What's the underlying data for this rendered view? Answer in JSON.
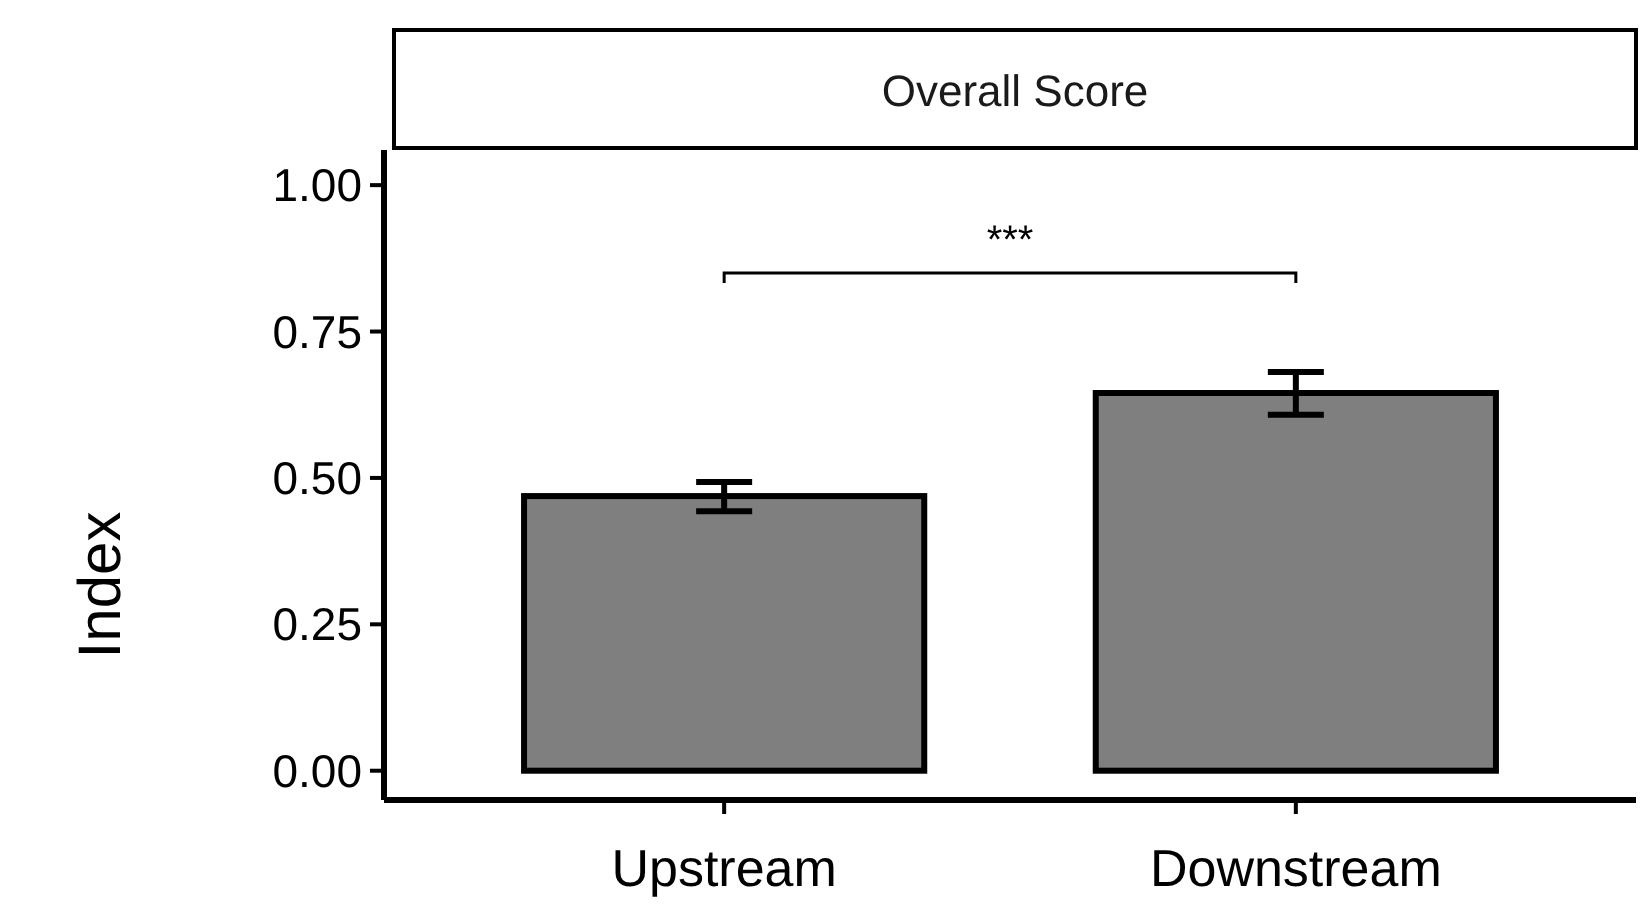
{
  "chart_data": {
    "type": "bar",
    "title": "Overall Score",
    "ylabel": "Index",
    "categories": [
      "Upstream",
      "Downstream"
    ],
    "values": [
      0.469,
      0.645
    ],
    "errors": [
      [
        0.443,
        0.493
      ],
      [
        0.608,
        0.681
      ]
    ],
    "color": "#7f7f7f",
    "ylim": [
      -0.05,
      1.06
    ],
    "yticks": [
      {
        "value": 0,
        "label": "0.00"
      },
      {
        "value": 0.25,
        "label": "0.25"
      },
      {
        "value": 0.5,
        "label": "0.50"
      },
      {
        "value": 0.75,
        "label": "0.75"
      },
      {
        "value": 1,
        "label": "1.00"
      }
    ],
    "annotations": [
      "***"
    ]
  }
}
